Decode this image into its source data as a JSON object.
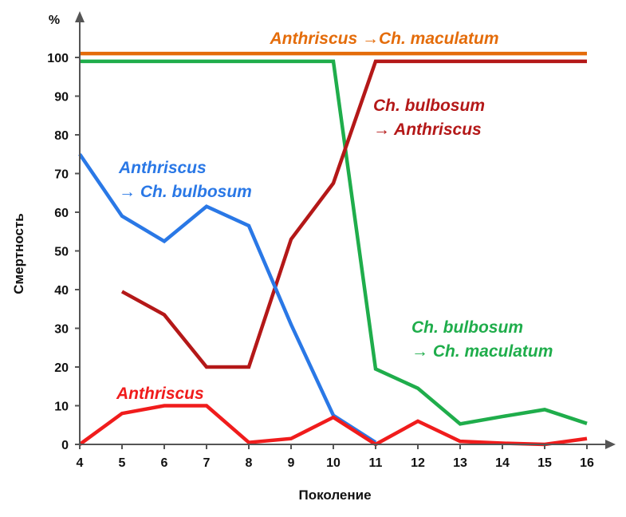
{
  "chart_data": {
    "type": "line",
    "xlabel": "Поколение",
    "ylabel": "Смертность",
    "yunit": "%",
    "xlim": [
      4,
      16.6
    ],
    "ylim": [
      0,
      106
    ],
    "x_ticks": [
      4,
      5,
      6,
      7,
      8,
      9,
      10,
      11,
      12,
      13,
      14,
      15,
      16
    ],
    "y_ticks": [
      0,
      10,
      20,
      30,
      40,
      50,
      60,
      70,
      80,
      90,
      100
    ],
    "grid": false,
    "legend": "none",
    "series": [
      {
        "name": "Anthriscus →Ch. maculatum",
        "label_lines": [
          "Anthriscus →Ch. maculatum"
        ],
        "color": "#e46c0a",
        "points": [
          [
            4,
            101
          ],
          [
            16,
            101
          ]
        ]
      },
      {
        "name": "Ch. bulbosum → Ch. maculatum",
        "label_lines": [
          "Ch. bulbosum",
          "→ Ch. maculatum"
        ],
        "color": "#1fad4b",
        "points": [
          [
            4,
            99
          ],
          [
            10,
            99
          ],
          [
            11,
            19.5
          ],
          [
            12,
            14.5
          ],
          [
            13,
            5.3
          ],
          [
            14,
            7.2
          ],
          [
            15,
            9
          ],
          [
            16,
            5.4
          ]
        ]
      },
      {
        "name": "Ch. bulbosum → Anthriscus",
        "label_lines": [
          "Ch. bulbosum",
          "→ Anthriscus"
        ],
        "color": "#b41818",
        "points": [
          [
            5,
            39.5
          ],
          [
            6,
            33.5
          ],
          [
            7,
            20
          ],
          [
            8,
            20
          ],
          [
            9,
            53
          ],
          [
            10,
            67.5
          ],
          [
            11,
            99
          ],
          [
            16,
            99
          ]
        ]
      },
      {
        "name": "Anthriscus → Ch. bulbosum",
        "label_lines": [
          "Anthriscus",
          "→ Ch. bulbosum"
        ],
        "color": "#2a78e6",
        "points": [
          [
            4,
            75
          ],
          [
            5,
            59
          ],
          [
            6,
            52.5
          ],
          [
            7,
            61.5
          ],
          [
            8,
            56.5
          ],
          [
            9,
            31
          ],
          [
            10,
            7.5
          ],
          [
            11,
            0.5
          ]
        ]
      },
      {
        "name": "Anthriscus",
        "label_lines": [
          "Anthriscus"
        ],
        "color": "#f01c1c",
        "points": [
          [
            4,
            0
          ],
          [
            5,
            8
          ],
          [
            6,
            10
          ],
          [
            7,
            10
          ],
          [
            8,
            0.5
          ],
          [
            9,
            1.5
          ],
          [
            10,
            7
          ],
          [
            11,
            0
          ],
          [
            12,
            6
          ],
          [
            13,
            0.8
          ],
          [
            14,
            0.3
          ],
          [
            15,
            0
          ],
          [
            16,
            1.5
          ]
        ]
      }
    ]
  }
}
